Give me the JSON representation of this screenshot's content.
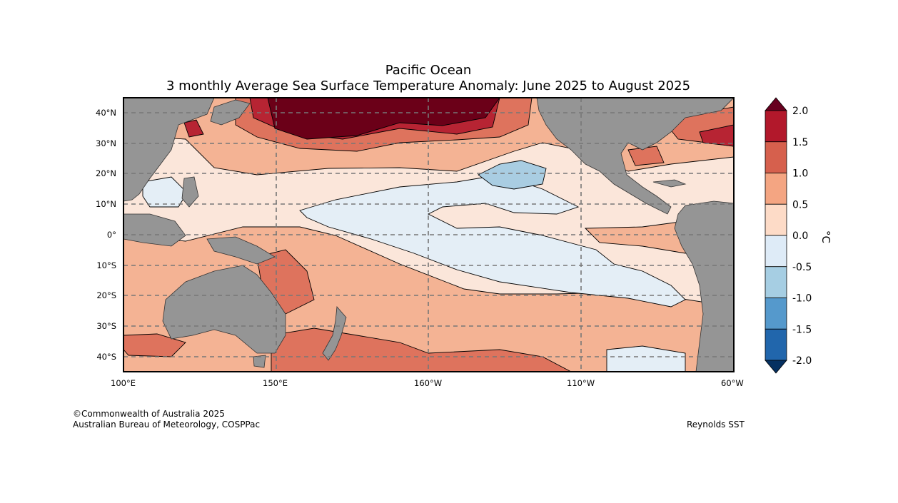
{
  "title": {
    "region": "Pacific Ocean",
    "subtitle": "3 monthly Average Sea Surface Temperature Anomaly: June 2025 to August 2025"
  },
  "axes": {
    "lat_labels": [
      "40°N",
      "30°N",
      "20°N",
      "10°N",
      "0°",
      "10°S",
      "20°S",
      "30°S",
      "40°S"
    ],
    "lon_labels": [
      "100°E",
      "150°E",
      "160°W",
      "110°W",
      "60°W"
    ]
  },
  "colorbar": {
    "unit": "°C",
    "ticks": [
      "2.0",
      "1.5",
      "1.0",
      "0.5",
      "0.0",
      "-0.5",
      "-1.0",
      "-1.5",
      "-2.0"
    ],
    "colors": [
      "#67001f",
      "#b2182b",
      "#d6604d",
      "#f4a582",
      "#fddbc7",
      "#deebf7",
      "#a6cee3",
      "#5599cc",
      "#2166ac",
      "#053061"
    ],
    "land_color": "#959595"
  },
  "footer": {
    "copyright": "©Commonwealth of Australia 2025",
    "agency": "Australian Bureau of Meteorology, COSPPac",
    "source": "Reynolds SST"
  }
}
